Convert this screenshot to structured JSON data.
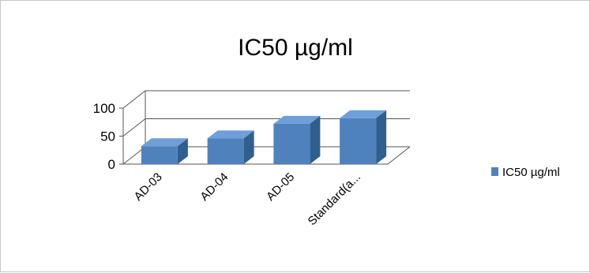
{
  "chart_data": {
    "type": "bar",
    "title": "IC50 µg/ml",
    "categories": [
      "AD-03",
      "AD-04",
      "AD-05",
      "Standard(a..."
    ],
    "series": [
      {
        "name": "IC50 µg/ml",
        "values": [
          32,
          46,
          72,
          82
        ]
      }
    ],
    "yticks": [
      "0",
      "50",
      "100"
    ],
    "ylim": [
      0,
      100
    ],
    "grid": true,
    "legend": "right",
    "colors": {
      "bar_front": "#4f81bd",
      "bar_side": "#2f5f8f",
      "bar_top": "#6f9fd8"
    }
  }
}
